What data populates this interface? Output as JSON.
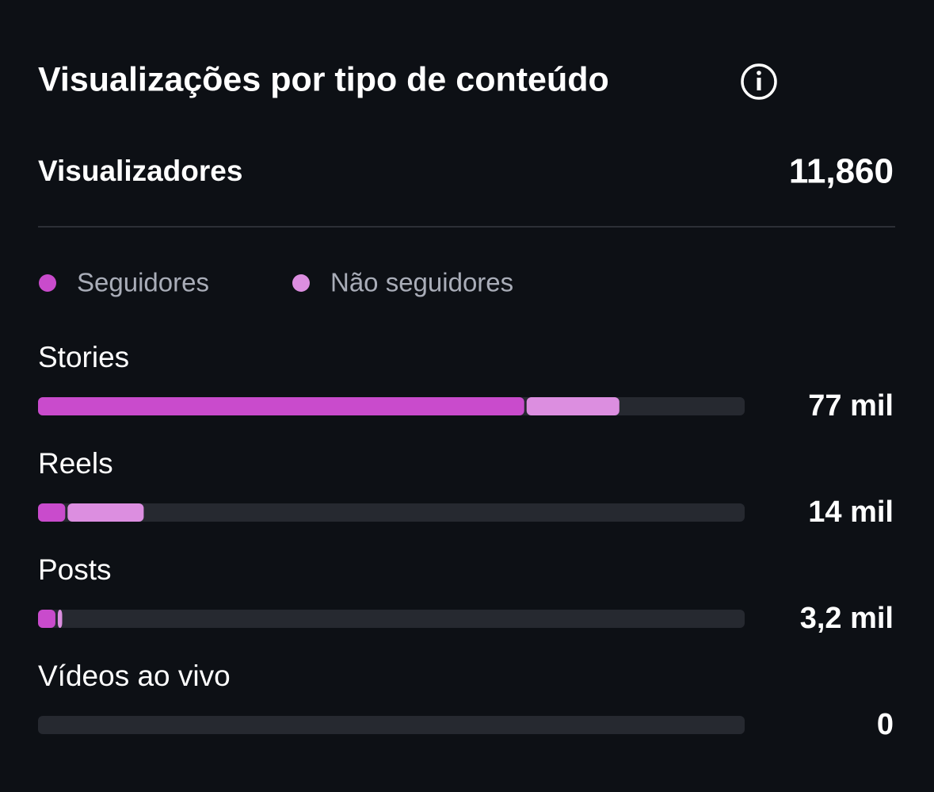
{
  "chart_data": {
    "type": "stacked-hbar",
    "title": "Visualizações por tipo de conteúdo",
    "summary_label": "Visualizadores",
    "summary_value": "11,860",
    "categories": [
      "Stories",
      "Reels",
      "Posts",
      "Vídeos ao vivo"
    ],
    "series": [
      {
        "name": "Seguidores",
        "color": "#c94bcc",
        "values": [
          64.4,
          3.6,
          2.3,
          0
        ]
      },
      {
        "name": "Não seguidores",
        "color": "#dc8ee0",
        "values": [
          12.6,
          10.4,
          0.9,
          0
        ]
      }
    ],
    "totals": [
      77,
      14,
      3.2,
      0
    ],
    "total_labels": [
      "77 mil",
      "14 mil",
      "3,2 mil",
      "0"
    ],
    "xlim": [
      0,
      93.6
    ]
  }
}
